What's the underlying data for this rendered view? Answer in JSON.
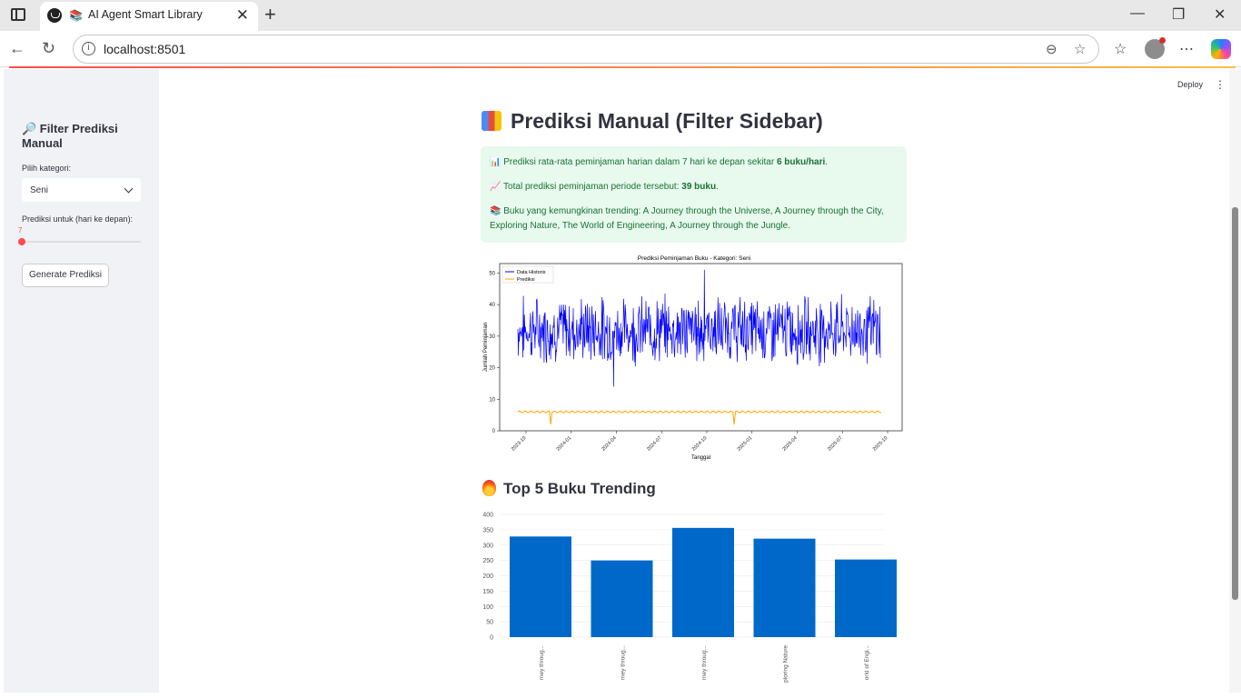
{
  "browser": {
    "tab_title": "AI Agent Smart Library",
    "url": "localhost:8501",
    "window_controls": [
      "minimize-icon",
      "restore-icon",
      "close-icon"
    ]
  },
  "sidebar": {
    "title": "🔎 Filter Prediksi Manual",
    "category_label": "Pilih kategori:",
    "category_value": "Seni",
    "days_label": "Prediksi untuk (hari ke depan):",
    "days_value": "7",
    "generate_button": "Generate Prediksi"
  },
  "header": {
    "deploy": "Deploy"
  },
  "main": {
    "title": "Prediksi Manual (Filter Sidebar)",
    "alert": {
      "line1_prefix": "📊 Prediksi rata-rata peminjaman harian dalam 7 hari ke depan sekitar ",
      "line1_bold": "6 buku/hari",
      "line1_suffix": ".",
      "line2_prefix": "📈 Total prediksi peminjaman periode tersebut: ",
      "line2_bold": "39 buku",
      "line2_suffix": ".",
      "line3": "📚 Buku yang kemungkinan trending: A Journey through the Universe, A Journey through the City, Exploring Nature, The World of Engineering, A Journey through the Jungle."
    },
    "trending_title": "Top 5 Buku Trending"
  },
  "chart_data": [
    {
      "type": "line",
      "title": "Prediksi Peminjaman Buku - Kategori: Seni",
      "xlabel": "Tanggal",
      "ylabel": "Jumlah Peminjaman",
      "ylim": [
        0,
        53
      ],
      "x_ticks": [
        "2023-10",
        "2024-01",
        "2024-04",
        "2024-07",
        "2024-10",
        "2025-01",
        "2025-04",
        "2025-07",
        "2025-10"
      ],
      "y_ticks": [
        0,
        10,
        20,
        30,
        40,
        50
      ],
      "legend_position": "top-left",
      "series": [
        {
          "name": "Data Historis",
          "color": "#0000ff",
          "range_start": "2023-09",
          "range_end": "2025-09",
          "approx_min": 14,
          "approx_max": 51,
          "approx_mean": 32
        },
        {
          "name": "Prediksi",
          "color": "#ffa500",
          "approx_value": 6,
          "dips_to": 2
        }
      ]
    },
    {
      "type": "bar",
      "categories": [
        "A Journey throug...",
        "A Journey throug...",
        "A Journey throug...",
        "Exploring Nature",
        "The World of Engi..."
      ],
      "tick_labels_visible": [
        "rney throug...",
        "rney throug...",
        "rney throug...",
        "ploring Nature",
        "orld of Engi..."
      ],
      "values": [
        328,
        250,
        356,
        321,
        253
      ],
      "ylim": [
        0,
        400
      ],
      "y_ticks": [
        0,
        50,
        100,
        150,
        200,
        250,
        300,
        350,
        400
      ],
      "color": "#0068c9"
    }
  ]
}
